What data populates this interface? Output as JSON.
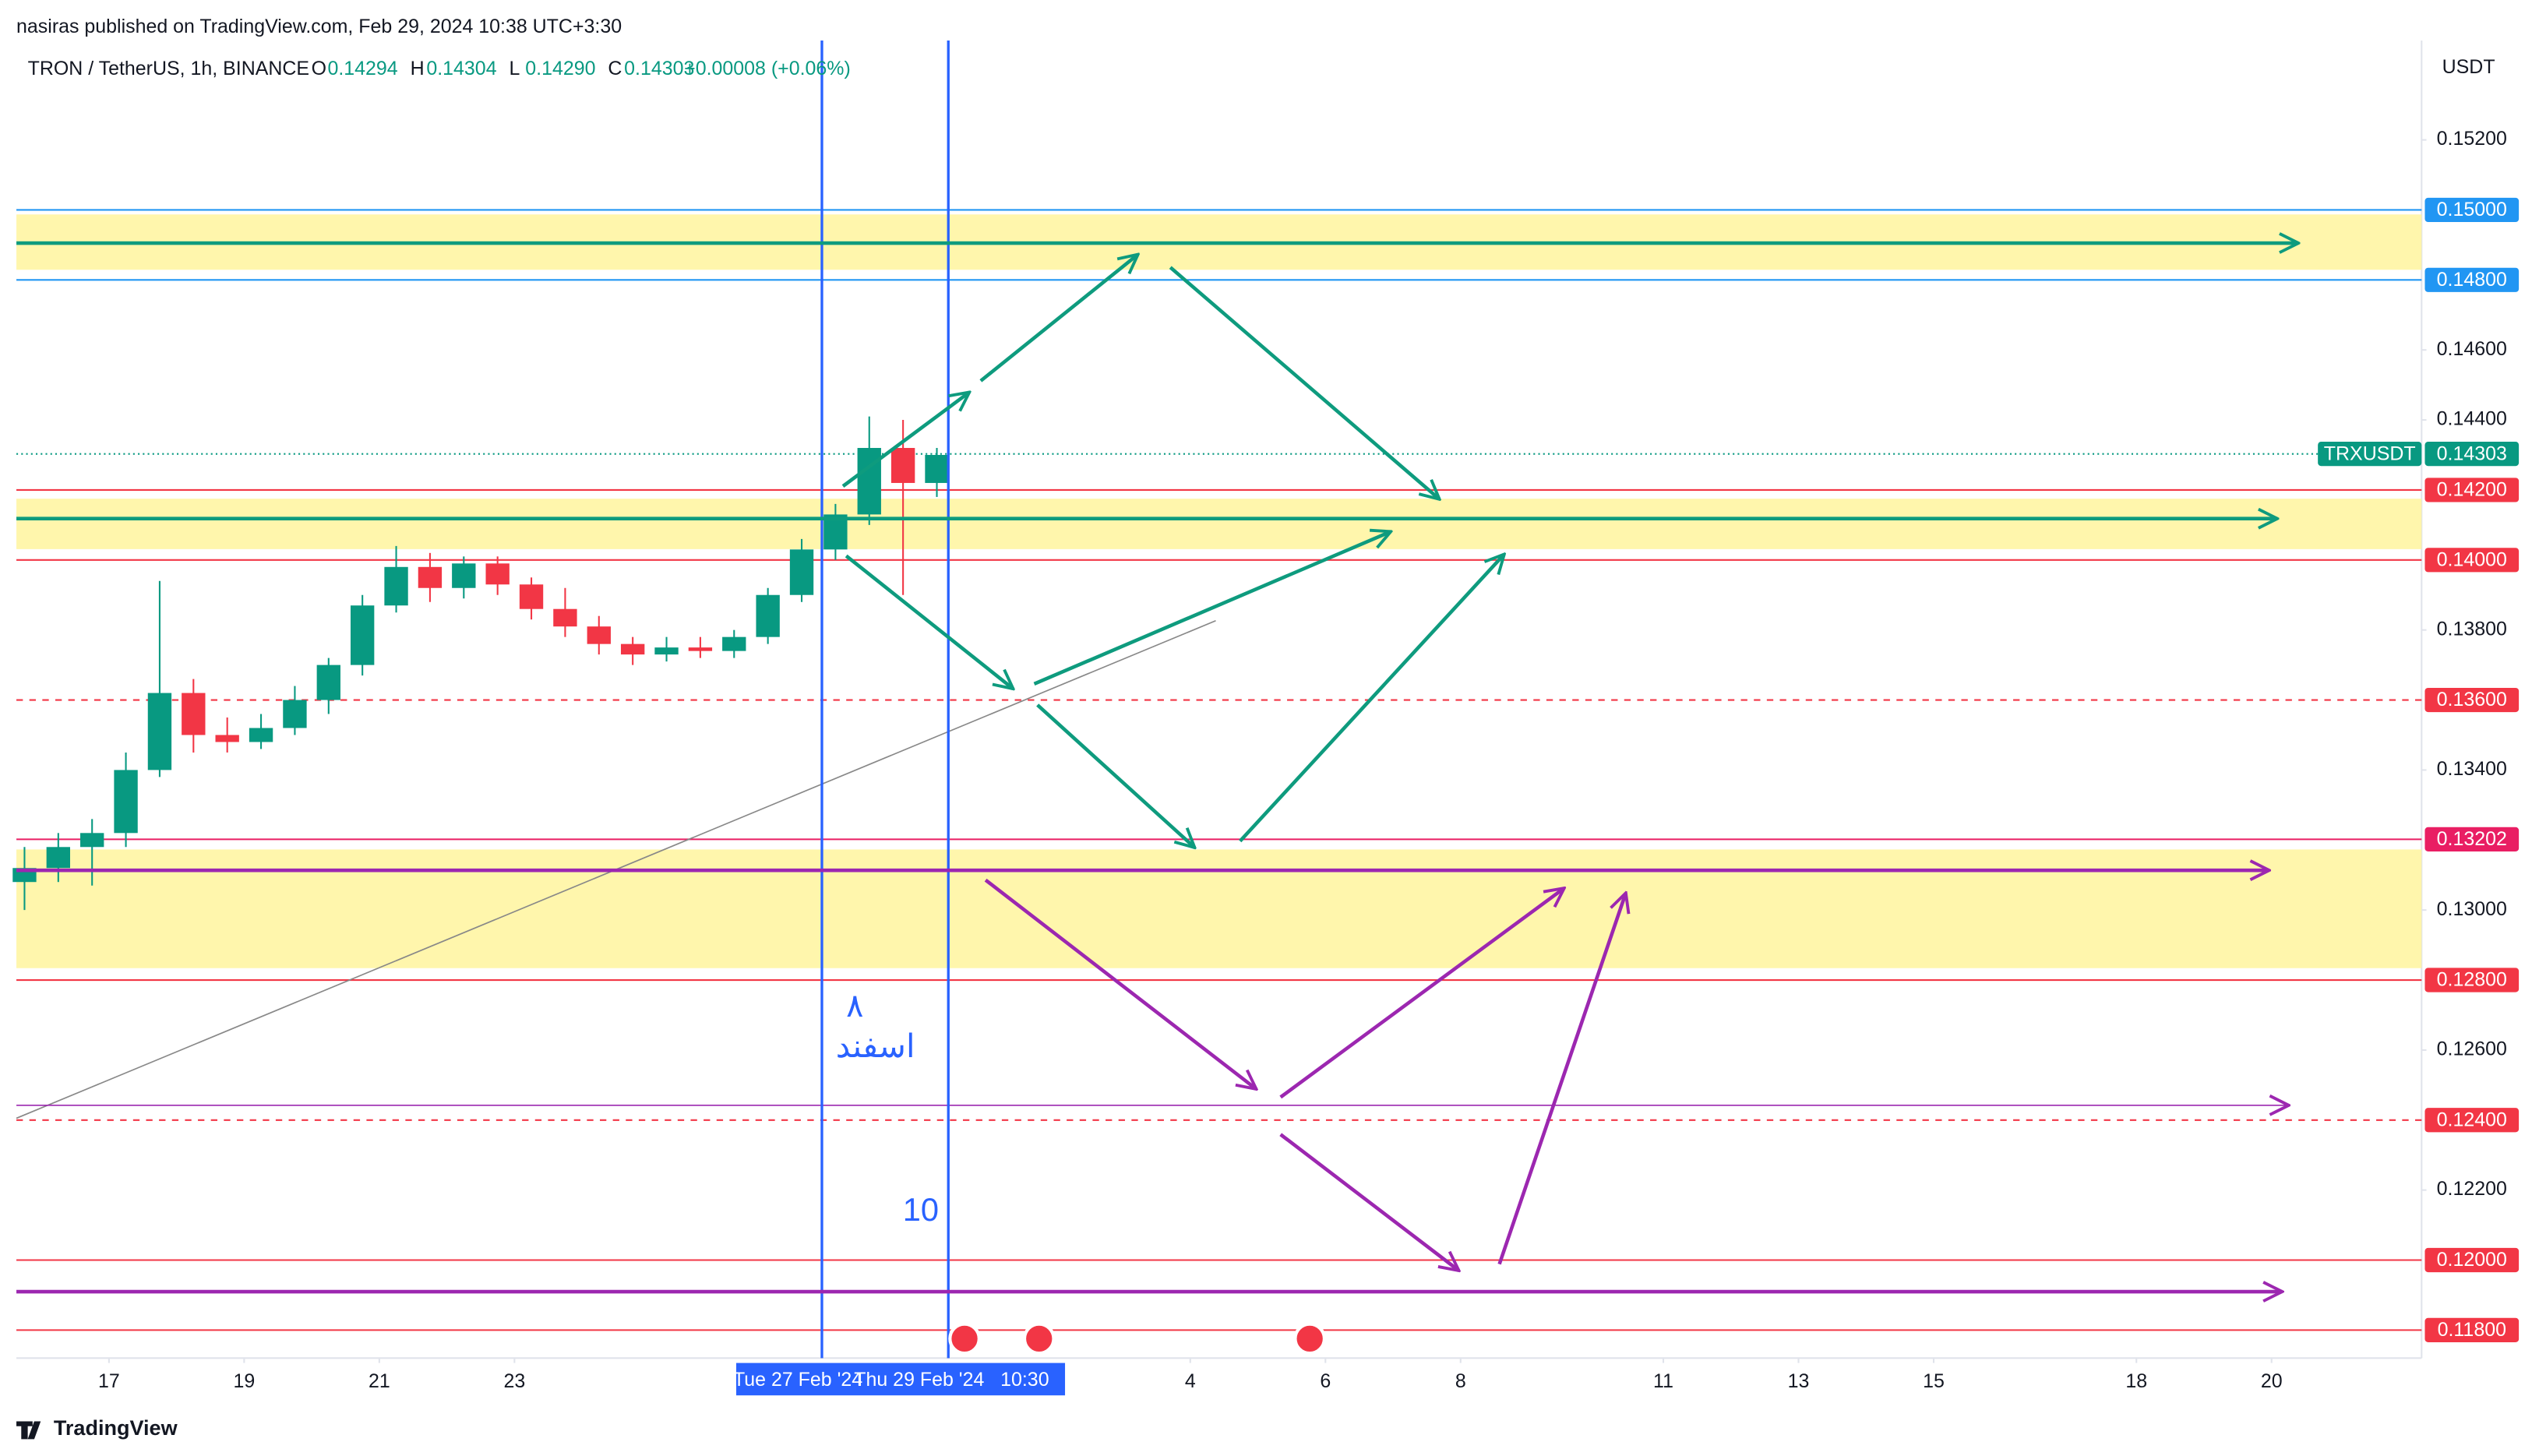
{
  "header": {
    "publisher": "nasiras published on TradingView.com, Feb 29, 2024 10:38 UTC+3:30",
    "brand": "TradingView"
  },
  "chart_data": {
    "type": "candlestick",
    "symbol": "TRON / TetherUS, 1h, BINANCE",
    "legend": {
      "O": "0.14294",
      "H": "0.14304",
      "L": "0.14290",
      "C": "0.14303",
      "change": "+0.00008 (+0.06%)"
    },
    "currency": "USDT",
    "x": [
      15.75,
      16.25,
      16.75,
      17.25,
      17.75,
      18.25,
      18.75,
      19.25,
      19.75,
      20.25,
      20.75,
      21.25,
      21.75,
      22.25,
      22.75,
      23.25,
      23.75,
      24.25,
      24.75,
      25.25,
      25.75,
      26.25,
      26.75,
      27.25,
      27.75,
      28.25,
      28.75,
      29.25
    ],
    "open": [
      0.1308,
      0.1312,
      0.1318,
      0.1322,
      0.134,
      0.1362,
      0.135,
      0.1348,
      0.1352,
      0.136,
      0.137,
      0.1387,
      0.1398,
      0.1392,
      0.1399,
      0.1393,
      0.1386,
      0.1381,
      0.1376,
      0.1373,
      0.1375,
      0.1374,
      0.1378,
      0.139,
      0.1403,
      0.1413,
      0.1432,
      0.1422
    ],
    "high": [
      0.1318,
      0.1322,
      0.1326,
      0.1345,
      0.1394,
      0.1366,
      0.1355,
      0.1356,
      0.1364,
      0.1372,
      0.139,
      0.1404,
      0.1402,
      0.1401,
      0.1401,
      0.1395,
      0.1392,
      0.1384,
      0.1378,
      0.1378,
      0.1378,
      0.138,
      0.1392,
      0.1406,
      0.1416,
      0.1441,
      0.144,
      0.1432
    ],
    "low": [
      0.13,
      0.1308,
      0.1307,
      0.1318,
      0.1338,
      0.1345,
      0.1345,
      0.1346,
      0.135,
      0.1356,
      0.1367,
      0.1385,
      0.1388,
      0.1389,
      0.139,
      0.1383,
      0.1378,
      0.1373,
      0.137,
      0.1371,
      0.1372,
      0.1372,
      0.1376,
      0.1388,
      0.14,
      0.141,
      0.139,
      0.1418
    ],
    "close": [
      0.1312,
      0.1318,
      0.1322,
      0.134,
      0.1362,
      0.135,
      0.1348,
      0.1352,
      0.136,
      0.137,
      0.1387,
      0.1398,
      0.1392,
      0.1399,
      0.1393,
      0.1386,
      0.1381,
      0.1376,
      0.1373,
      0.1375,
      0.1374,
      0.1378,
      0.139,
      0.1403,
      0.1413,
      0.1432,
      0.1422,
      0.143
    ],
    "up_color": "#089981",
    "down_color": "#f23645",
    "xlim": [
      15.63,
      51.22
    ],
    "ylim": [
      0.1172,
      0.1547
    ],
    "xticks": [
      17,
      19,
      21,
      23,
      {
        "value": 33,
        "label": "4"
      },
      {
        "value": 35,
        "label": "6"
      },
      {
        "value": 37,
        "label": "8"
      },
      {
        "value": 40,
        "label": "11"
      },
      {
        "value": 42,
        "label": "13"
      },
      {
        "value": 44,
        "label": "15"
      },
      {
        "value": 47,
        "label": "18"
      },
      {
        "value": 49,
        "label": "20"
      }
    ],
    "x_markers": [
      {
        "value": 27.96,
        "label": "Tue 27 Feb '24"
      },
      {
        "value": 29.42,
        "label": "Thu 29 Feb '24   10:30"
      }
    ],
    "yticks": [
      {
        "value": 0.152,
        "label": "0.15200"
      },
      {
        "value": 0.146,
        "label": "0.14600"
      },
      {
        "value": 0.144,
        "label": "0.14400"
      },
      {
        "value": 0.138,
        "label": "0.13800"
      },
      {
        "value": 0.134,
        "label": "0.13400"
      },
      {
        "value": 0.13,
        "label": "0.13000"
      },
      {
        "value": 0.126,
        "label": "0.12600"
      },
      {
        "value": 0.122,
        "label": "0.12200"
      }
    ],
    "levels": [
      {
        "value": 0.15,
        "label": "0.15000",
        "color": "#2196f3",
        "dashed": false
      },
      {
        "value": 0.148,
        "label": "0.14800",
        "color": "#2196f3",
        "dashed": false
      },
      {
        "value": 0.142,
        "label": "0.14200",
        "color": "#f23645",
        "dashed": false
      },
      {
        "value": 0.14,
        "label": "0.14000",
        "color": "#f23645",
        "dashed": false
      },
      {
        "value": 0.136,
        "label": "0.13600",
        "color": "#f23645",
        "dashed": true
      },
      {
        "value": 0.13202,
        "label": "0.13202",
        "color": "#e91e63",
        "dashed": false
      },
      {
        "value": 0.128,
        "label": "0.12800",
        "color": "#f23645",
        "dashed": false
      },
      {
        "value": 0.124,
        "label": "0.12400",
        "color": "#f23645",
        "dashed": true
      },
      {
        "value": 0.12,
        "label": "0.12000",
        "color": "#f23645",
        "dashed": false
      },
      {
        "value": 0.118,
        "label": "0.11800",
        "color": "#f23645",
        "dashed": false
      }
    ],
    "last_price": {
      "name": "TRXUSDT",
      "value": 0.14303,
      "label": "0.14303",
      "color": "#089981"
    },
    "zones": [
      {
        "from": 0.14829,
        "to": 0.14987
      },
      {
        "from": 0.14031,
        "to": 0.14175
      },
      {
        "from": 0.12834,
        "to": 0.13173
      }
    ],
    "zone_color": "#fff59d",
    "annotations": [
      "۸",
      "اسفند",
      "10"
    ],
    "grid": false
  }
}
